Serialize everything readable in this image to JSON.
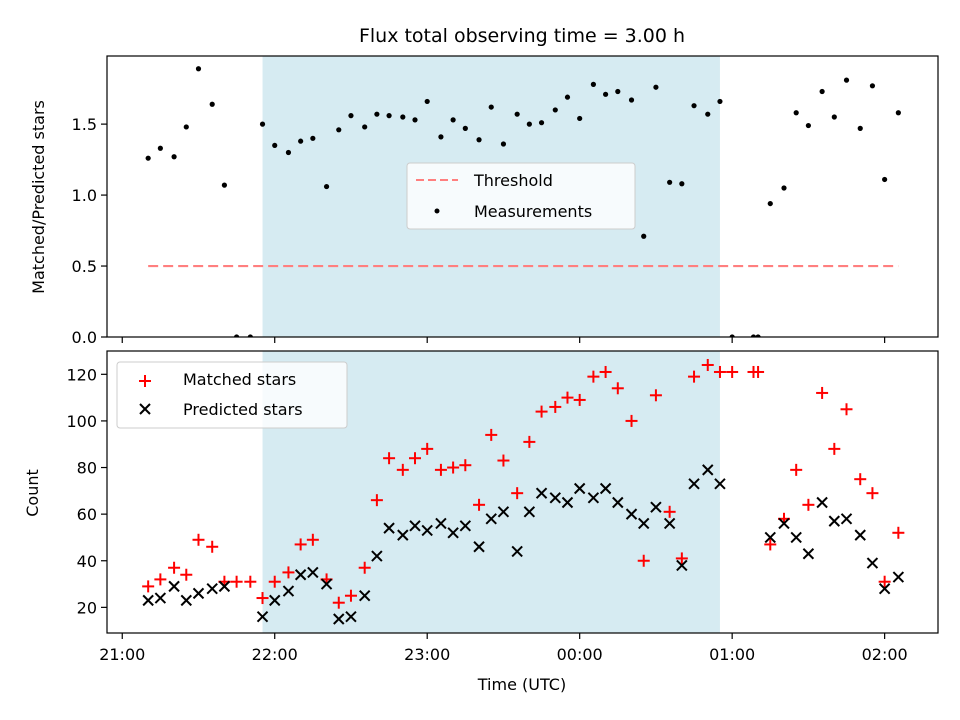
{
  "chart_data": {
    "type": "scatter",
    "title": "Flux total observing time = 3.00 h",
    "xlabel": "Time (UTC)",
    "x_unit": "hours since 21:00 UTC",
    "xlim": [
      -0.1,
      5.35
    ],
    "xticks": [
      {
        "x": 0,
        "label": "21:00"
      },
      {
        "x": 1,
        "label": "22:00"
      },
      {
        "x": 2,
        "label": "23:00"
      },
      {
        "x": 3,
        "label": "00:00"
      },
      {
        "x": 4,
        "label": "01:00"
      },
      {
        "x": 5,
        "label": "02:00"
      }
    ],
    "shaded_region": {
      "x_start": 0.92,
      "x_end": 3.92,
      "color": "#add8e6"
    },
    "top_panel": {
      "ylabel": "Matched/Predicted stars",
      "ylim": [
        0,
        1.98
      ],
      "yticks": [
        0.0,
        0.5,
        1.0,
        1.5
      ],
      "ytick_labels": [
        "0.0",
        "0.5",
        "1.0",
        "1.5"
      ],
      "legend": {
        "placement": "center",
        "entries": [
          "Threshold",
          "Measurements"
        ]
      },
      "series": [
        {
          "name": "Threshold",
          "style": "dashed-line",
          "color": "#ff7f7f",
          "x": [
            0.17,
            5.09
          ],
          "y": [
            0.5,
            0.5
          ]
        },
        {
          "name": "Measurements",
          "style": "dot",
          "color": "#000000",
          "x": [
            0.17,
            0.25,
            0.34,
            0.42,
            0.5,
            0.59,
            0.67,
            0.75,
            0.84,
            0.92,
            1.0,
            1.09,
            1.17,
            1.25,
            1.34,
            1.42,
            1.5,
            1.59,
            1.67,
            1.75,
            1.84,
            1.92,
            2.0,
            2.09,
            2.17,
            2.25,
            2.34,
            2.42,
            2.5,
            2.59,
            2.67,
            2.75,
            2.84,
            2.92,
            3.0,
            3.09,
            3.17,
            3.25,
            3.34,
            3.42,
            3.5,
            3.59,
            3.67,
            3.75,
            3.84,
            3.92,
            4.0,
            4.14,
            4.17,
            4.25,
            4.34,
            4.42,
            4.5,
            4.59,
            4.67,
            4.75,
            4.84,
            4.92,
            5.0,
            5.09
          ],
          "y": [
            1.26,
            1.33,
            1.27,
            1.48,
            1.89,
            1.64,
            1.07,
            0.0,
            0.0,
            1.5,
            1.35,
            1.3,
            1.38,
            1.4,
            1.06,
            1.46,
            1.56,
            1.48,
            1.57,
            1.56,
            1.55,
            1.53,
            1.66,
            1.41,
            1.53,
            1.47,
            1.39,
            1.62,
            1.36,
            1.57,
            1.5,
            1.51,
            1.6,
            1.69,
            1.54,
            1.78,
            1.71,
            1.73,
            1.67,
            0.71,
            1.76,
            1.09,
            1.08,
            1.63,
            1.57,
            1.66,
            0.0,
            0.0,
            0.0,
            0.94,
            1.05,
            1.58,
            1.49,
            1.73,
            1.55,
            1.81,
            1.47,
            1.77,
            1.11,
            1.58
          ]
        }
      ]
    },
    "bottom_panel": {
      "ylabel": "Count",
      "ylim": [
        9,
        130
      ],
      "yticks": [
        20,
        40,
        60,
        80,
        100,
        120
      ],
      "ytick_labels": [
        "20",
        "40",
        "60",
        "80",
        "100",
        "120"
      ],
      "legend": {
        "placement": "upper left",
        "entries": [
          "Matched stars",
          "Predicted stars"
        ]
      },
      "series": [
        {
          "name": "Matched stars",
          "marker": "+",
          "color": "#ff0000",
          "x": [
            0.17,
            0.25,
            0.34,
            0.42,
            0.5,
            0.59,
            0.67,
            0.75,
            0.84,
            0.92,
            1.0,
            1.09,
            1.17,
            1.25,
            1.34,
            1.42,
            1.5,
            1.59,
            1.67,
            1.75,
            1.84,
            1.92,
            2.0,
            2.09,
            2.17,
            2.25,
            2.34,
            2.42,
            2.5,
            2.59,
            2.67,
            2.75,
            2.84,
            2.92,
            3.0,
            3.09,
            3.17,
            3.25,
            3.34,
            3.42,
            3.5,
            3.59,
            3.67,
            3.75,
            3.84,
            3.92,
            4.0,
            4.14,
            4.17,
            4.25,
            4.34,
            4.42,
            4.5,
            4.59,
            4.67,
            4.75,
            4.84,
            4.92,
            5.0,
            5.09
          ],
          "y": [
            29,
            32,
            37,
            34,
            49,
            46,
            31,
            31,
            31,
            24,
            31,
            35,
            47,
            49,
            32,
            22,
            25,
            37,
            66,
            84,
            79,
            84,
            88,
            79,
            80,
            81,
            64,
            94,
            83,
            69,
            91,
            104,
            106,
            110,
            109,
            119,
            121,
            114,
            100,
            40,
            111,
            61,
            41,
            119,
            124,
            121,
            121,
            121,
            121,
            47,
            58,
            79,
            64,
            112,
            88,
            105,
            75,
            69,
            31,
            52
          ]
        },
        {
          "name": "Predicted stars",
          "marker": "x",
          "color": "#000000",
          "x": [
            0.17,
            0.25,
            0.34,
            0.42,
            0.5,
            0.59,
            0.67,
            0.92,
            1.0,
            1.09,
            1.17,
            1.25,
            1.34,
            1.42,
            1.5,
            1.59,
            1.67,
            1.75,
            1.84,
            1.92,
            2.0,
            2.09,
            2.17,
            2.25,
            2.34,
            2.42,
            2.5,
            2.59,
            2.67,
            2.75,
            2.84,
            2.92,
            3.0,
            3.09,
            3.17,
            3.25,
            3.34,
            3.42,
            3.5,
            3.59,
            3.67,
            3.75,
            3.84,
            3.92,
            4.25,
            4.34,
            4.42,
            4.5,
            4.59,
            4.67,
            4.75,
            4.84,
            4.92,
            5.0,
            5.09
          ],
          "y": [
            23,
            24,
            29,
            23,
            26,
            28,
            29,
            16,
            23,
            27,
            34,
            35,
            30,
            15,
            16,
            25,
            42,
            54,
            51,
            55,
            53,
            56,
            52,
            55,
            46,
            58,
            61,
            44,
            61,
            69,
            67,
            65,
            71,
            67,
            71,
            65,
            60,
            56,
            63,
            56,
            38,
            73,
            79,
            73,
            50,
            56,
            50,
            43,
            65,
            57,
            58,
            51,
            39,
            28,
            33
          ]
        }
      ]
    }
  }
}
